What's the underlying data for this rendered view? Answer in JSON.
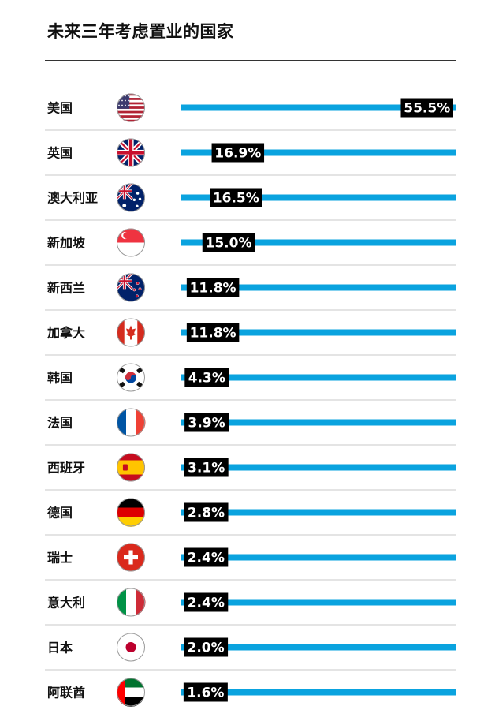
{
  "title": "未来三年考虑置业的国家",
  "colors": {
    "bar": "#0aa3df",
    "label_bg": "#000000",
    "divider": "#c8c8c8",
    "rule": "#333333"
  },
  "chart_data": {
    "type": "bar",
    "orientation": "horizontal",
    "title": "未来三年考虑置业的国家",
    "unit": "%",
    "xlim": [
      0,
      55.5
    ],
    "categories": [
      "美国",
      "英国",
      "澳大利亚",
      "新加坡",
      "新西兰",
      "加拿大",
      "韩国",
      "法国",
      "西班牙",
      "德国",
      "瑞士",
      "意大利",
      "日本",
      "阿联酋"
    ],
    "values": [
      55.5,
      16.9,
      16.5,
      15.0,
      11.8,
      11.8,
      4.3,
      3.9,
      3.1,
      2.8,
      2.4,
      2.4,
      2.0,
      1.6
    ],
    "value_labels": [
      "55.5%",
      "16.9%",
      "16.5%",
      "15.0%",
      "11.8%",
      "11.8%",
      "4.3%",
      "3.9%",
      "3.1%",
      "2.8%",
      "2.4%",
      "2.4%",
      "2.0%",
      "1.6%"
    ],
    "flags": [
      "us-flag-icon",
      "uk-flag-icon",
      "australia-flag-icon",
      "singapore-flag-icon",
      "new-zealand-flag-icon",
      "canada-flag-icon",
      "korea-flag-icon",
      "france-flag-icon",
      "spain-flag-icon",
      "germany-flag-icon",
      "switzerland-flag-icon",
      "italy-flag-icon",
      "japan-flag-icon",
      "uae-flag-icon"
    ]
  }
}
